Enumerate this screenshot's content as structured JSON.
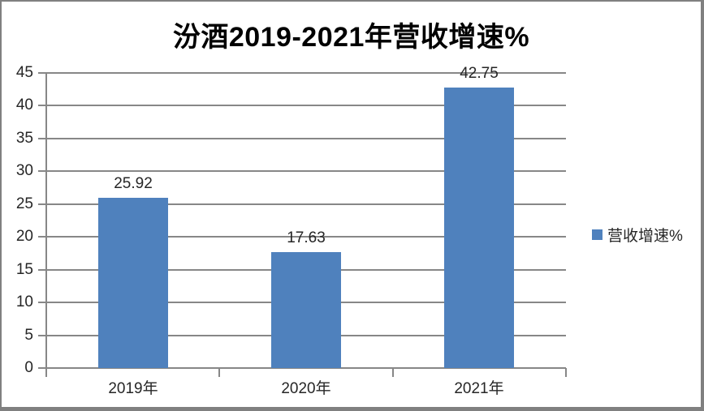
{
  "title": "汾酒2019-2021年营收增速%",
  "legend": {
    "label": "营收增速%"
  },
  "chart_data": {
    "type": "bar",
    "title": "汾酒2019-2021年营收增速%",
    "categories": [
      "2019年",
      "2020年",
      "2021年"
    ],
    "values": [
      25.92,
      17.63,
      42.75
    ],
    "data_labels": [
      "25.92",
      "17.63",
      "42.75"
    ],
    "series_name": "营收增速%",
    "xlabel": "",
    "ylabel": "",
    "ylim": [
      0,
      45
    ],
    "yticks": [
      0,
      5,
      10,
      15,
      20,
      25,
      30,
      35,
      40,
      45
    ],
    "grid": true,
    "legend_position": "right",
    "colors": {
      "bar": "#4f81bd",
      "gridline": "#878787",
      "axis": "#878787",
      "text": "#262626",
      "title_text": "#000000",
      "frame_border": "#808080",
      "background": "#ffffff"
    }
  }
}
